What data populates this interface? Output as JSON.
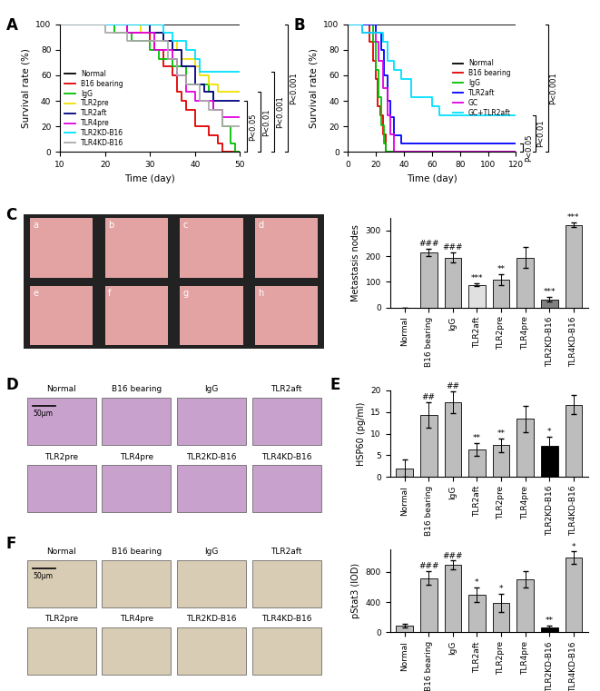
{
  "chart_data": [
    {
      "type": "line",
      "panel_label": "A",
      "line_style": "step",
      "x_label": "Time (day)",
      "y_label": "Survival rate (%)",
      "xlim": [
        10,
        50
      ],
      "xticks": [
        10,
        20,
        30,
        40,
        50
      ],
      "ylim": [
        0,
        100
      ],
      "yticks": [
        0,
        20,
        40,
        60,
        80,
        100
      ],
      "legend": "lower left",
      "grid": false,
      "series": [
        {
          "name": "Normal",
          "color": "#000000",
          "x": [
            10,
            50
          ],
          "values": [
            100,
            100
          ]
        },
        {
          "name": "B16 bearing",
          "color": "#e00000",
          "x": [
            10,
            25,
            30,
            31,
            33,
            35,
            36,
            37,
            38,
            40,
            43,
            45,
            46,
            50
          ],
          "values": [
            100,
            93,
            87,
            80,
            67,
            60,
            47,
            40,
            33,
            20,
            13,
            7,
            0,
            0
          ]
        },
        {
          "name": "IgG",
          "color": "#00c000",
          "x": [
            10,
            22,
            26,
            30,
            32,
            35,
            38,
            43,
            44,
            46,
            48,
            49,
            50
          ],
          "values": [
            100,
            93,
            87,
            80,
            73,
            67,
            53,
            47,
            33,
            20,
            7,
            0,
            0
          ]
        },
        {
          "name": "TLR2pre",
          "color": "#f0e000",
          "x": [
            10,
            28,
            33,
            36,
            37,
            40,
            41,
            43,
            45,
            50
          ],
          "values": [
            100,
            93,
            87,
            80,
            73,
            67,
            60,
            53,
            47,
            47
          ]
        },
        {
          "name": "TLR2aft",
          "color": "#000080",
          "x": [
            10,
            30,
            33,
            35,
            37,
            40,
            42,
            44,
            50
          ],
          "values": [
            100,
            93,
            87,
            80,
            67,
            53,
            47,
            40,
            40
          ]
        },
        {
          "name": "TLR4pre",
          "color": "#e000e0",
          "x": [
            10,
            25,
            31,
            35,
            36,
            38,
            40,
            44,
            46,
            50
          ],
          "values": [
            100,
            93,
            80,
            73,
            60,
            47,
            40,
            33,
            27,
            27
          ]
        },
        {
          "name": "TLR2KD-B16",
          "color": "#00e0ff",
          "x": [
            10,
            33,
            35,
            38,
            40,
            41,
            50
          ],
          "values": [
            100,
            93,
            87,
            80,
            73,
            63,
            63
          ]
        },
        {
          "name": "TLR4KD-B16",
          "color": "#aaaaaa",
          "x": [
            10,
            20,
            25,
            34,
            36,
            38,
            41,
            43,
            46,
            50
          ],
          "values": [
            100,
            93,
            87,
            73,
            60,
            53,
            40,
            33,
            20,
            20
          ]
        }
      ],
      "annotations": [
        {
          "text": "P<0.05",
          "between": [
            "TLR2aft",
            "B16 bearing"
          ]
        },
        {
          "text": "P<0.01",
          "between": [
            "TLR2pre",
            "B16 bearing"
          ]
        },
        {
          "text": "P<0.001",
          "between": [
            "TLR2KD-B16",
            "B16 bearing"
          ]
        },
        {
          "text": "P<0.001",
          "between": [
            "Normal",
            "B16 bearing"
          ]
        }
      ]
    },
    {
      "type": "line",
      "panel_label": "B",
      "line_style": "step",
      "x_label": "Time (day)",
      "y_label": "Survival rate (%)",
      "xlim": [
        0,
        120
      ],
      "xticks": [
        0,
        20,
        40,
        60,
        80,
        100,
        120
      ],
      "ylim": [
        0,
        100
      ],
      "yticks": [
        0,
        20,
        40,
        60,
        80,
        100
      ],
      "legend": "center right",
      "grid": false,
      "series": [
        {
          "name": "Normal",
          "color": "#000000",
          "x": [
            0,
            120
          ],
          "values": [
            100,
            100
          ]
        },
        {
          "name": "B16 bearing",
          "color": "#e00000",
          "x": [
            0,
            15,
            18,
            20,
            21,
            23,
            25,
            27,
            120
          ],
          "values": [
            100,
            86,
            71,
            57,
            36,
            29,
            14,
            0,
            0
          ]
        },
        {
          "name": "IgG",
          "color": "#00c000",
          "x": [
            0,
            18,
            20,
            22,
            24,
            26,
            27,
            120
          ],
          "values": [
            100,
            86,
            64,
            43,
            21,
            7,
            0,
            0
          ]
        },
        {
          "name": "TLR2aft",
          "color": "#0000ff",
          "x": [
            0,
            20,
            24,
            26,
            28,
            30,
            33,
            38,
            120
          ],
          "values": [
            100,
            93,
            80,
            60,
            40,
            27,
            13,
            7,
            7
          ]
        },
        {
          "name": "GC",
          "color": "#e000e0",
          "x": [
            0,
            10,
            20,
            22,
            25,
            28,
            30,
            33,
            120
          ],
          "values": [
            100,
            93,
            86,
            71,
            50,
            29,
            14,
            0,
            0
          ]
        },
        {
          "name": "GC+TLR2aft",
          "color": "#00e0ff",
          "x": [
            0,
            10,
            25,
            28,
            33,
            38,
            45,
            60,
            65,
            120
          ],
          "values": [
            100,
            93,
            86,
            71,
            64,
            57,
            43,
            36,
            29,
            29
          ]
        }
      ],
      "annotations": [
        {
          "text": "P<0.05",
          "between": [
            "TLR2aft",
            "IgG"
          ]
        },
        {
          "text": "P<0.01",
          "between": [
            "GC+TLR2aft",
            "IgG"
          ]
        },
        {
          "text": "P<0.001",
          "between": [
            "Normal",
            "IgG"
          ]
        }
      ]
    },
    {
      "type": "photo",
      "panel_label": "C",
      "labels": [
        "a",
        "b",
        "c",
        "d",
        "e",
        "f",
        "g",
        "h"
      ]
    },
    {
      "type": "bar",
      "y_label": "Metastasis nodes",
      "categories": [
        "Normal",
        "B16 bearing",
        "IgG",
        "TLR2aft",
        "TLR2pre",
        "TLR4pre",
        "TLR2KD-B16",
        "TLR4KD-B16"
      ],
      "values": [
        0,
        215,
        195,
        88,
        108,
        195,
        32,
        322
      ],
      "errors": [
        0,
        15,
        20,
        5,
        20,
        40,
        10,
        8
      ],
      "significance": [
        null,
        "###",
        "###",
        "***",
        "**",
        null,
        "***",
        "***"
      ],
      "colors": [
        "#bdbdbd",
        "#bdbdbd",
        "#bdbdbd",
        "#e0e0e0",
        "#bdbdbd",
        "#bdbdbd",
        "#808080",
        "#bdbdbd"
      ],
      "ylim": [
        0,
        350
      ],
      "yticks": [
        0,
        100,
        200,
        300
      ],
      "grid": false
    },
    {
      "type": "micrograph",
      "panel_label": "D",
      "scale_bar": "50μm",
      "labels": [
        "Normal",
        "B16 bearing",
        "IgG",
        "TLR2aft",
        "TLR2pre",
        "TLR4pre",
        "TLR2KD-B16",
        "TLR4KD-B16"
      ]
    },
    {
      "type": "bar",
      "panel_label": "E",
      "y_label": "HSP60 (pg/ml)",
      "categories": [
        "Normal",
        "B16 bearing",
        "IgG",
        "TLR2aft",
        "TLR2pre",
        "TLR4pre",
        "TLR2KD-B16",
        "TLR4KD-B16"
      ],
      "values": [
        2,
        14.3,
        17.3,
        6.3,
        7.3,
        13.4,
        7.2,
        16.7
      ],
      "errors": [
        2,
        3,
        2.5,
        1.5,
        1.5,
        3,
        2,
        2.2
      ],
      "significance": [
        null,
        "##",
        "##",
        "**",
        "**",
        null,
        "*",
        null
      ],
      "colors": [
        "#bdbdbd",
        "#bdbdbd",
        "#bdbdbd",
        "#bdbdbd",
        "#bdbdbd",
        "#bdbdbd",
        "#000000",
        "#bdbdbd"
      ],
      "ylim": [
        0,
        20
      ],
      "yticks": [
        0,
        5,
        10,
        15,
        20
      ],
      "grid": false
    },
    {
      "type": "micrograph",
      "panel_label": "F",
      "scale_bar": "50μm",
      "labels": [
        "Normal",
        "B16 bearing",
        "IgG",
        "TLR2aft",
        "TLR2pre",
        "TLR4pre",
        "TLR2KD-B16",
        "TLR4KD-B16"
      ]
    },
    {
      "type": "bar",
      "y_label": "pStat3 (IOD)",
      "categories": [
        "Normal",
        "B16 bearing",
        "IgG",
        "TLR2aft",
        "TLR2pre",
        "TLR4pre",
        "TLR2KD-B16",
        "TLR4KD-B16"
      ],
      "values": [
        90,
        720,
        890,
        500,
        390,
        700,
        70,
        990
      ],
      "errors": [
        20,
        90,
        60,
        100,
        120,
        110,
        15,
        80
      ],
      "significance": [
        null,
        "###",
        "###",
        "*",
        "*",
        null,
        "**",
        "*"
      ],
      "colors": [
        "#bdbdbd",
        "#bdbdbd",
        "#bdbdbd",
        "#bdbdbd",
        "#bdbdbd",
        "#bdbdbd",
        "#000000",
        "#bdbdbd"
      ],
      "ylim": [
        0,
        1100
      ],
      "yticks": [
        0,
        400,
        800
      ],
      "grid": false
    }
  ]
}
